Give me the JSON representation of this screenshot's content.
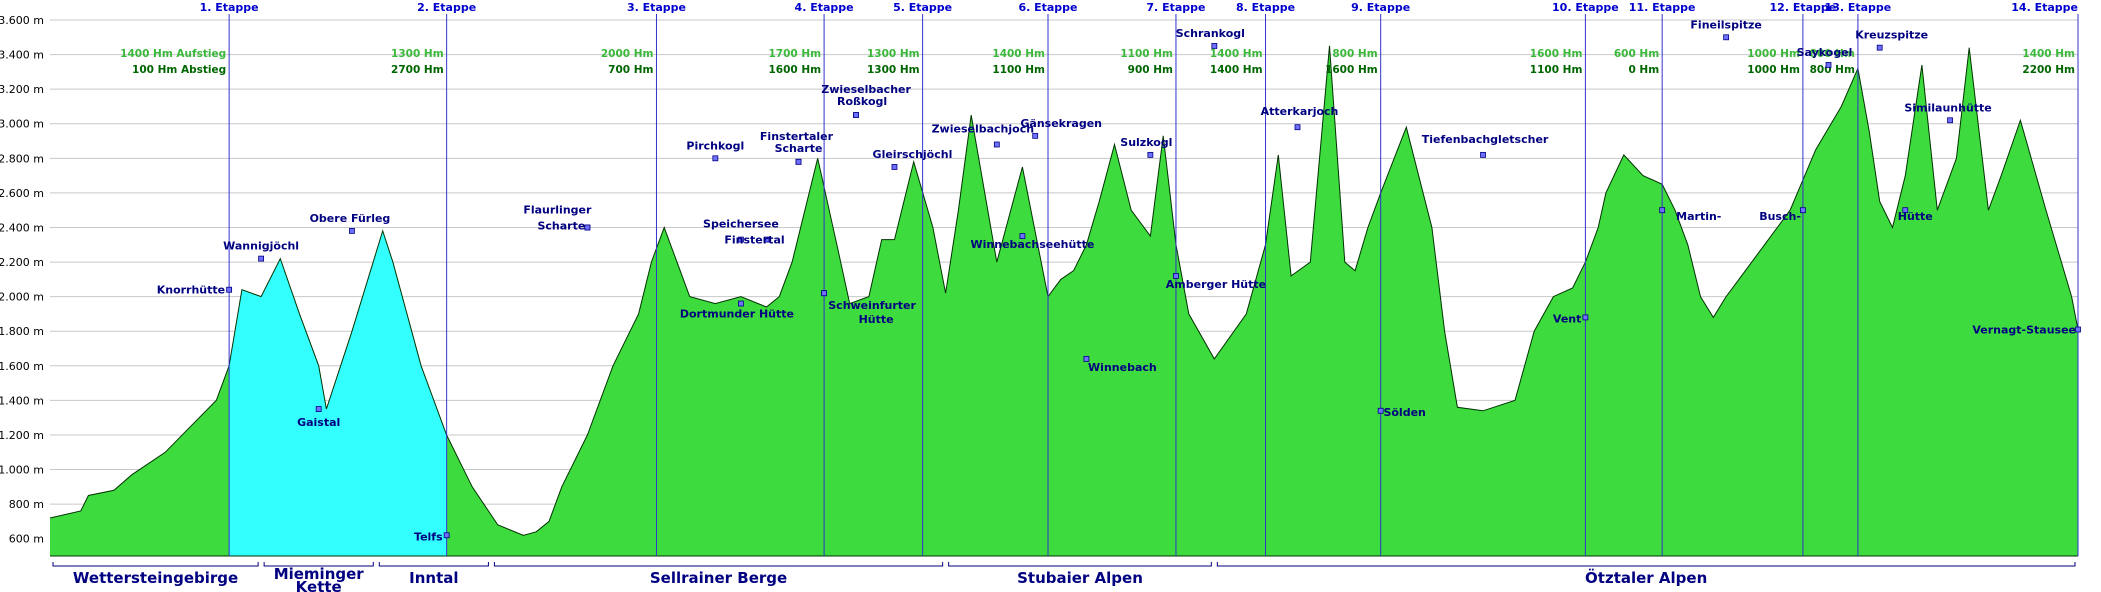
{
  "chart_data": {
    "type": "area",
    "title": "",
    "xlabel": "",
    "ylabel": "",
    "ylim": [
      500,
      3600
    ],
    "y_ticks": [
      "600 m",
      "800 m",
      "1.000 m",
      "1.200 m",
      "1.400 m",
      "1.600 m",
      "1.800 m",
      "2.000 m",
      "2.200 m",
      "2.400 m",
      "2.600 m",
      "2.800 m",
      "3.000 m",
      "3.200 m",
      "3.400 m",
      "3.600 m"
    ],
    "grid": true,
    "series": [
      {
        "name": "",
        "color": "#33dd33",
        "x": [
          0,
          24,
          30,
          50,
          64,
          90,
          110,
          130,
          140,
          150,
          165,
          180,
          195,
          210,
          216,
          236,
          260,
          268,
          290,
          310,
          330,
          350,
          370,
          380,
          390,
          400,
          420,
          440,
          460,
          470,
          480,
          490,
          500,
          520,
          540,
          560,
          570,
          580,
          600,
          615,
          625,
          640,
          650,
          660,
          675,
          690,
          700,
          710,
          720,
          740,
          760,
          780,
          790,
          800,
          810,
          820,
          832,
          845,
          860,
          870,
          880,
          890,
          910,
          935,
          950,
          960,
          970,
          985,
          1000,
          1012,
          1020,
          1030,
          1040,
          1060,
          1080,
          1090,
          1100,
          1120,
          1145,
          1160,
          1175,
          1190,
          1200,
          1210,
          1216,
          1230,
          1245,
          1260,
          1270,
          1280,
          1290,
          1300,
          1310,
          1320,
          1340,
          1360,
          1380,
          1400,
          1413,
          1422,
          1430,
          1440,
          1450,
          1463,
          1475,
          1490,
          1500,
          1515,
          1525,
          1540,
          1560,
          1580,
          1585
        ],
        "y": [
          720,
          760,
          850,
          880,
          970,
          1100,
          1250,
          1400,
          1600,
          2040,
          2000,
          2220,
          1900,
          1600,
          1350,
          1800,
          2380,
          2200,
          1600,
          1200,
          900,
          680,
          620,
          640,
          700,
          900,
          1200,
          1600,
          1900,
          2200,
          2400,
          2200,
          2000,
          1960,
          2000,
          1940,
          2000,
          2200,
          2800,
          2300,
          1960,
          2000,
          2330,
          2330,
          2780,
          2400,
          2020,
          2500,
          3050,
          2200,
          2750,
          2000,
          2100,
          2150,
          2300,
          2550,
          2880,
          2500,
          2350,
          2930,
          2300,
          1900,
          1640,
          1900,
          2300,
          2820,
          2120,
          2200,
          3450,
          2200,
          2150,
          2400,
          2600,
          2980,
          2400,
          1800,
          1360,
          1340,
          1400,
          1800,
          2000,
          2050,
          2200,
          2400,
          2600,
          2820,
          2700,
          2650,
          2500,
          2300,
          2000,
          1880,
          2000,
          2100,
          2300,
          2500,
          2850,
          3100,
          3320,
          2950,
          2550,
          2400,
          2700,
          3340,
          2500,
          2800,
          3440,
          2500,
          2700,
          3020,
          2500,
          2000,
          1810
        ]
      }
    ],
    "stages": [
      "1. Etappe",
      "2. Etappe",
      "3. Etappe",
      "4. Etappe",
      "5. Etappe",
      "6. Etappe",
      "7. Etappe",
      "8. Etappe",
      "9. Etappe",
      "10. Etappe",
      "11. Etappe",
      "12. Etappe",
      "13. Etappe",
      "14. Etappe"
    ],
    "stage_x": [
      140,
      310,
      474,
      605,
      682,
      780,
      880,
      950,
      1040,
      1200,
      1260,
      1370,
      1413,
      1585
    ],
    "stage_hm": [
      {
        "up": "1400 Hm Aufstieg",
        "down": "100 Hm Abstieg"
      },
      {
        "up": "1300 Hm",
        "down": "2700 Hm"
      },
      {
        "up": "2000 Hm",
        "down": "700 Hm"
      },
      {
        "up": "1700 Hm",
        "down": "1600 Hm"
      },
      {
        "up": "1300 Hm",
        "down": "1300 Hm"
      },
      {
        "up": "1400 Hm",
        "down": "1100 Hm"
      },
      {
        "up": "1100 Hm",
        "down": "900 Hm"
      },
      {
        "up": "1400 Hm",
        "down": "1400 Hm"
      },
      {
        "up": "800 Hm",
        "down": "1600 Hm"
      },
      {
        "up": "1600 Hm",
        "down": "1100 Hm"
      },
      {
        "up": "600 Hm",
        "down": "0 Hm"
      },
      {
        "up": "1000 Hm",
        "down": "1000 Hm"
      },
      {
        "up": "800 Hm",
        "down": "800 Hm"
      },
      {
        "up": "1400 Hm",
        "down": "2200 Hm"
      }
    ],
    "places": [
      {
        "name": "Knorrhütte",
        "x": 140,
        "y": 2040
      },
      {
        "name": "Wannigjöchl",
        "x": 165,
        "y": 2220
      },
      {
        "name": "Obere Fürleg",
        "x": 236,
        "y": 2380
      },
      {
        "name": "Gaistal",
        "x": 210,
        "y": 1350
      },
      {
        "name": "Telfs",
        "x": 310,
        "y": 620
      },
      {
        "name": "Flaurlinger",
        "x": 420,
        "y": 2400
      },
      {
        "name": "Scharte",
        "x": 420,
        "y": 2400
      },
      {
        "name": "Dortmunder Hütte",
        "x": 540,
        "y": 1960
      },
      {
        "name": "Pirchkogl",
        "x": 520,
        "y": 2800
      },
      {
        "name": "Speichersee",
        "x": 540,
        "y": 2330
      },
      {
        "name": "Finstertal",
        "x": 560,
        "y": 2330
      },
      {
        "name": "Finstertaler",
        "x": 585,
        "y": 2780
      },
      {
        "name": "Scharte",
        "x": 585,
        "y": 2780
      },
      {
        "name": "Zwieselbacher",
        "x": 630,
        "y": 3050
      },
      {
        "name": "Roßkogl",
        "x": 630,
        "y": 3050
      },
      {
        "name": "Gleirschjöchl",
        "x": 660,
        "y": 2750
      },
      {
        "name": "Schweinfurter",
        "x": 605,
        "y": 2020
      },
      {
        "name": "Hütte",
        "x": 605,
        "y": 2020
      },
      {
        "name": "Zwieselbachjoch",
        "x": 740,
        "y": 2880
      },
      {
        "name": "Gänsekragen",
        "x": 770,
        "y": 2930
      },
      {
        "name": "Winnebachseehütte",
        "x": 760,
        "y": 2350
      },
      {
        "name": "Winnebach",
        "x": 810,
        "y": 1640
      },
      {
        "name": "Sulzkogl",
        "x": 860,
        "y": 2820
      },
      {
        "name": "Amberger Hütte",
        "x": 880,
        "y": 2120
      },
      {
        "name": "Schrankogl",
        "x": 910,
        "y": 3450
      },
      {
        "name": "Atterkarjoch",
        "x": 975,
        "y": 2980
      },
      {
        "name": "Sölden",
        "x": 1040,
        "y": 1340
      },
      {
        "name": "Tiefenbachgletscher",
        "x": 1120,
        "y": 2820
      },
      {
        "name": "Vent",
        "x": 1200,
        "y": 1880
      },
      {
        "name": "Martin-",
        "x": 1260,
        "y": 2500
      },
      {
        "name": "Fineilspitze",
        "x": 1310,
        "y": 3500
      },
      {
        "name": "Busch-",
        "x": 1370,
        "y": 2500
      },
      {
        "name": "Saykogel",
        "x": 1390,
        "y": 3340
      },
      {
        "name": "Kreuzspitze",
        "x": 1430,
        "y": 3440
      },
      {
        "name": "Hütte",
        "x": 1450,
        "y": 2500
      },
      {
        "name": "Similaunhütte",
        "x": 1485,
        "y": 3020
      },
      {
        "name": "Vernagt-Stausee",
        "x": 1585,
        "y": 1810
      }
    ],
    "regions": [
      {
        "label": "Wettersteingebirge"
      },
      {
        "label": "Mieminger"
      },
      {
        "label": "Kette"
      },
      {
        "label": "Inntal"
      },
      {
        "label": "Sellrainer Berge"
      },
      {
        "label": "Stubaier Alpen"
      },
      {
        "label": "Ötztaler Alpen"
      }
    ]
  },
  "colors": {
    "fill_main": "#3ddb3d",
    "fill_highlight": "#33ffff",
    "outline": "#003300",
    "grid": "#c8c8c8",
    "stage_line": "#3333cc"
  }
}
